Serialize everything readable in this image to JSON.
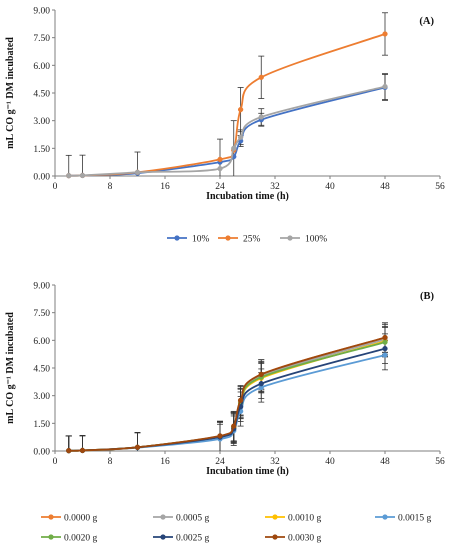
{
  "chart_data": [
    {
      "type": "line",
      "panel_label": "(A)",
      "xlabel": "Incubation time (h)",
      "ylabel": "mL CO g⁻¹ DM incubated",
      "xlim": [
        0,
        56
      ],
      "ylim": [
        0,
        9
      ],
      "xticks": [
        "0",
        "8",
        "16",
        "24",
        "32",
        "40",
        "48",
        "56"
      ],
      "yticks": [
        "0.00",
        "1.50",
        "3.00",
        "4.50",
        "6.00",
        "7.50",
        "9.00"
      ],
      "grid": false,
      "legend_position": "bottom",
      "x": [
        2,
        4,
        12,
        24,
        26,
        27,
        30,
        48
      ],
      "series": [
        {
          "name": "10%",
          "color": "#4472c4",
          "values": [
            0.02,
            0.03,
            0.15,
            0.75,
            1.05,
            1.9,
            3.05,
            4.8
          ],
          "errors": [
            0.0,
            0.0,
            0.0,
            0.0,
            0.0,
            0.3,
            0.35,
            0.7
          ]
        },
        {
          "name": "25%",
          "color": "#ed7d31",
          "values": [
            0.02,
            0.03,
            0.2,
            0.9,
            1.4,
            3.6,
            5.35,
            7.7
          ],
          "errors": [
            0.0,
            0.0,
            0.0,
            0.0,
            0.0,
            1.2,
            1.15,
            1.15
          ]
        },
        {
          "name": "100%",
          "color": "#a5a5a5",
          "values": [
            0.02,
            0.03,
            0.2,
            0.4,
            1.5,
            2.1,
            3.2,
            4.85
          ],
          "errors": [
            1.1,
            1.1,
            1.1,
            1.6,
            1.5,
            0.4,
            0.45,
            0.7
          ]
        }
      ]
    },
    {
      "type": "line",
      "panel_label": "(B)",
      "xlabel": "Incubation time (h)",
      "ylabel": "mL CO g⁻¹ DM incubated",
      "xlim": [
        0,
        56
      ],
      "ylim": [
        0,
        9
      ],
      "xticks": [
        "0",
        "8",
        "16",
        "24",
        "32",
        "40",
        "48",
        "56"
      ],
      "yticks": [
        "0.00",
        "1.50",
        "3.00",
        "4.50",
        "6.00",
        "7.50",
        "9.00"
      ],
      "grid": false,
      "legend_position": "bottom",
      "x": [
        2,
        4,
        12,
        24,
        26,
        27,
        30,
        48
      ],
      "series": [
        {
          "name": "0.0000 g",
          "color": "#ed7d31",
          "values": [
            0.02,
            0.03,
            0.2,
            0.8,
            1.3,
            2.7,
            4.15,
            6.15
          ],
          "errors": [
            0.8,
            0.8,
            0.8,
            0.8,
            0.8,
            0.8,
            0.8,
            0.8
          ]
        },
        {
          "name": "0.0005 g",
          "color": "#a5a5a5",
          "values": [
            0.02,
            0.03,
            0.2,
            0.8,
            1.3,
            2.6,
            4.05,
            6.05
          ],
          "errors": [
            0.8,
            0.8,
            0.8,
            0.8,
            0.8,
            0.8,
            0.8,
            0.8
          ]
        },
        {
          "name": "0.0010 g",
          "color": "#ffc000",
          "values": [
            0.02,
            0.03,
            0.2,
            0.78,
            1.25,
            2.55,
            3.95,
            5.95
          ],
          "errors": [
            0.8,
            0.8,
            0.8,
            0.8,
            0.8,
            0.8,
            0.8,
            0.8
          ]
        },
        {
          "name": "0.0015 g",
          "color": "#5b9bd5",
          "values": [
            0.02,
            0.03,
            0.18,
            0.65,
            1.1,
            2.15,
            3.45,
            5.2
          ],
          "errors": [
            0.8,
            0.8,
            0.8,
            0.8,
            0.8,
            0.8,
            0.8,
            0.8
          ]
        },
        {
          "name": "0.0020 g",
          "color": "#70ad47",
          "values": [
            0.02,
            0.03,
            0.2,
            0.8,
            1.3,
            2.6,
            4.0,
            5.9
          ],
          "errors": [
            0.8,
            0.8,
            0.8,
            0.8,
            0.8,
            0.8,
            0.8,
            0.8
          ]
        },
        {
          "name": "0.0025 g",
          "color": "#264478",
          "values": [
            0.02,
            0.03,
            0.2,
            0.75,
            1.2,
            2.4,
            3.65,
            5.55
          ],
          "errors": [
            0.8,
            0.8,
            0.8,
            0.8,
            0.8,
            0.8,
            0.8,
            0.8
          ]
        },
        {
          "name": "0.0030 g",
          "color": "#9e480e",
          "values": [
            0.02,
            0.03,
            0.2,
            0.82,
            1.35,
            2.75,
            4.15,
            6.15
          ],
          "errors": [
            0.8,
            0.8,
            0.8,
            0.8,
            0.8,
            0.8,
            0.8,
            0.8
          ]
        }
      ]
    }
  ]
}
